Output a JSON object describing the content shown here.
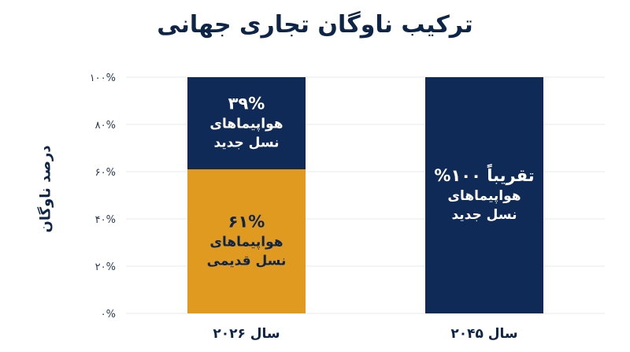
{
  "chart_data": {
    "type": "bar",
    "stacked": true,
    "title": "ترکیب ناوگان تجاری جهانی",
    "ylabel": "درصد ناوگان",
    "xlabel": "",
    "ylim": [
      0,
      100
    ],
    "y_ticks": [
      "۰%",
      "۲۰%",
      "۴۰%",
      "۶۰%",
      "۸۰%",
      "۱۰۰%"
    ],
    "y_tick_values": [
      0,
      20,
      40,
      60,
      80,
      100
    ],
    "grid": true,
    "categories": [
      "سال ۲۰۲۶",
      "سال ۲۰۴۵"
    ],
    "bars": [
      {
        "category": "سال ۲۰۲۶",
        "segments": [
          {
            "value": 61,
            "color": "#e09a1f",
            "text_color": "#0f2548",
            "label_lines": [
              "۶۱%",
              "هواپیماهای",
              "نسل قدیمی"
            ]
          },
          {
            "value": 39,
            "color": "#0f2a56",
            "text_color": "#ffffff",
            "label_lines": [
              "۳۹%",
              "هواپیماهای",
              "نسل جدید"
            ]
          }
        ]
      },
      {
        "category": "سال ۲۰۴۵",
        "segments": [
          {
            "value": 100,
            "color": "#0f2a56",
            "text_color": "#ffffff",
            "label_lines": [
              "تقریباً ۱۰۰%",
              "هواپیماهای",
              "نسل جدید"
            ]
          }
        ]
      }
    ]
  }
}
